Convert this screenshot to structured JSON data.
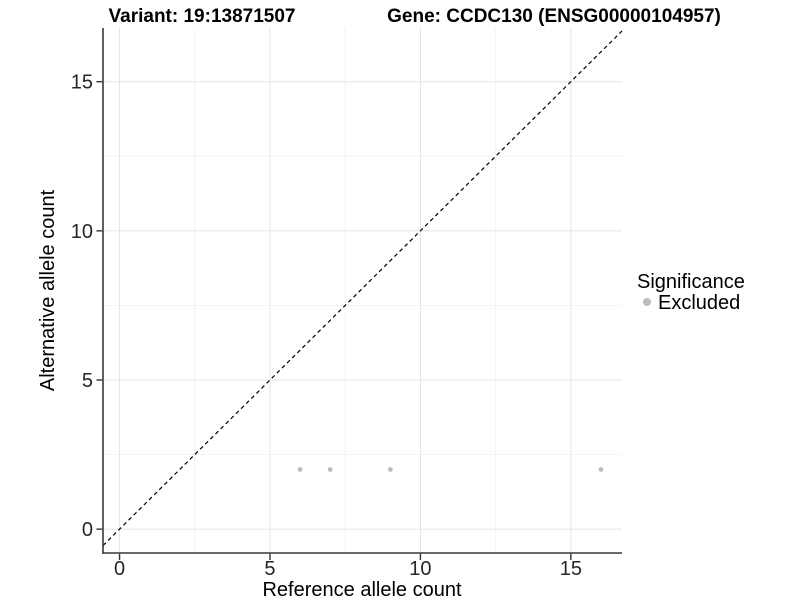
{
  "header": {
    "variant_title": "Variant: 19:13871507",
    "gene_title": "Gene: CCDC130 (ENSG00000104957)"
  },
  "chart_data": {
    "type": "scatter",
    "title": "Variant: 19:13871507 / Gene: CCDC130 (ENSG00000104957)",
    "xlabel": "Reference allele count",
    "ylabel": "Alternative allele count",
    "xlim": [
      -0.55,
      16.7
    ],
    "ylim": [
      -0.8,
      16.8
    ],
    "x_major_ticks": [
      0,
      5,
      10,
      15
    ],
    "x_minor_gridlines": [
      2.5,
      7.5,
      12.5
    ],
    "y_major_ticks": [
      0,
      5,
      10,
      15
    ],
    "y_minor_gridlines": [
      2.5,
      7.5,
      12.5
    ],
    "grid": "major and minor, light gray, on white panel",
    "reference_line": {
      "kind": "identity y=x",
      "style": "dashed",
      "color": "#000000"
    },
    "series": [
      {
        "name": "Excluded",
        "color": "#bcbcbc",
        "points": [
          {
            "x": 6,
            "y": 2
          },
          {
            "x": 7,
            "y": 2
          },
          {
            "x": 9,
            "y": 2
          },
          {
            "x": 16,
            "y": 2
          }
        ]
      }
    ],
    "legend": {
      "title": "Significance",
      "position": "right",
      "items": [
        {
          "label": "Excluded",
          "color": "#bcbcbc"
        }
      ]
    }
  },
  "colors": {
    "background": "#ffffff",
    "axis_line": "#383838",
    "grid_major": "#e4e4e4",
    "grid_minor": "#f2f2f2",
    "point": "#bcbcbc",
    "reference_line": "#000000",
    "tick_mark": "#333333"
  }
}
